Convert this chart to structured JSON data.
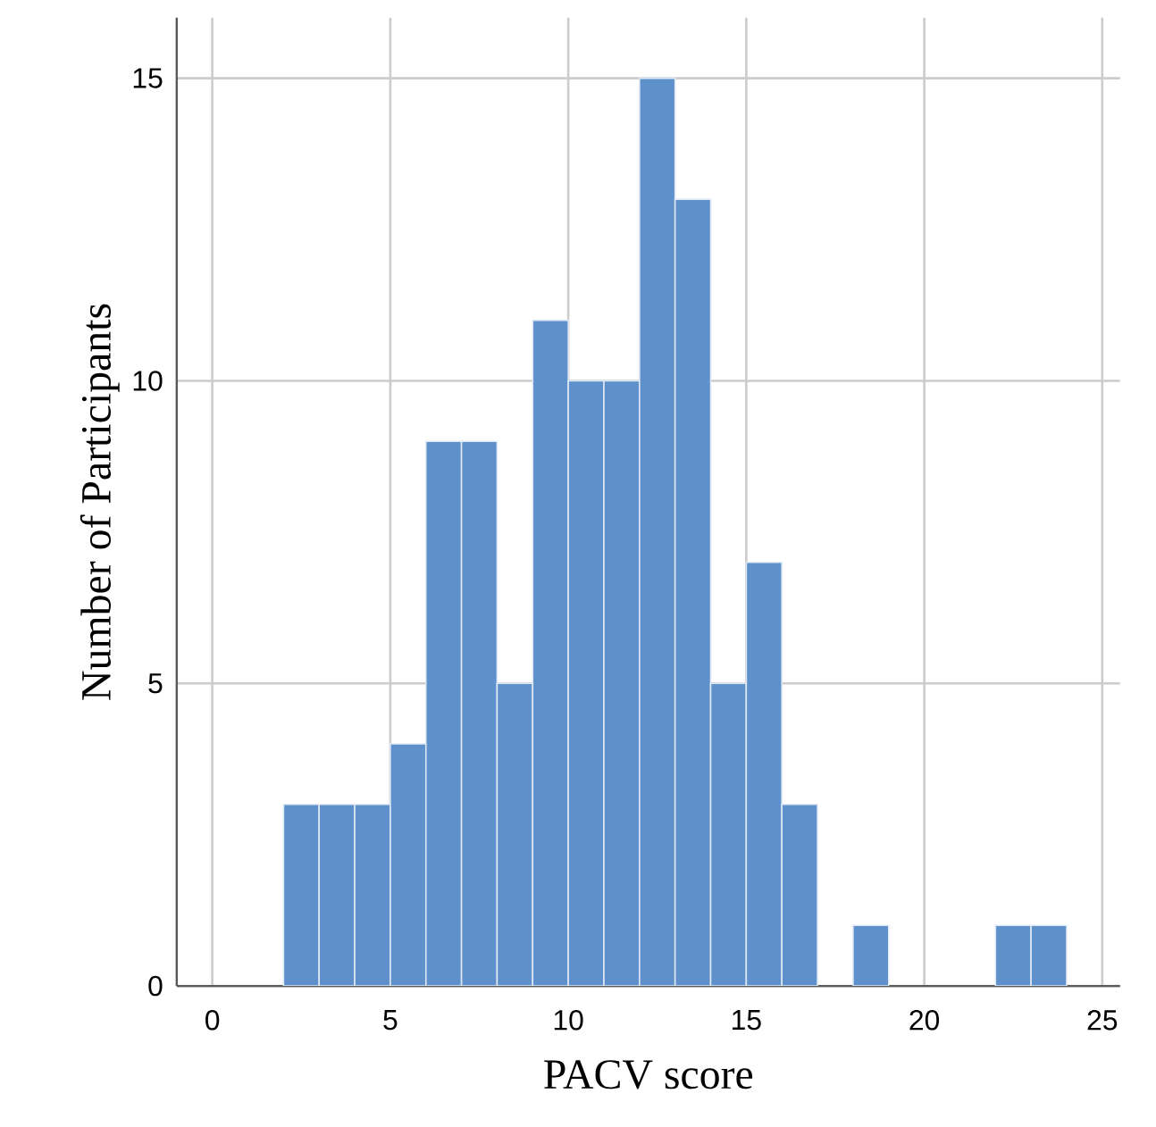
{
  "chart_data": {
    "type": "histogram",
    "xlabel": "PACV score",
    "ylabel": "Number of Participants",
    "bins": [
      2,
      3,
      4,
      5,
      6,
      7,
      8,
      9,
      10,
      11,
      12,
      13,
      14,
      15,
      16,
      17,
      18,
      19,
      20,
      21,
      22,
      23,
      24
    ],
    "values": [
      3,
      3,
      3,
      4,
      9,
      9,
      5,
      11,
      10,
      10,
      15,
      13,
      5,
      7,
      3,
      0,
      1,
      0,
      0,
      0,
      1,
      1
    ],
    "color": "#5e90cc",
    "xlim": [
      -1,
      25.5
    ],
    "ylim": [
      0,
      16
    ],
    "xticks": [
      0,
      5,
      10,
      15,
      20,
      25
    ],
    "yticks": [
      0,
      5,
      10,
      15
    ],
    "grid": true
  }
}
